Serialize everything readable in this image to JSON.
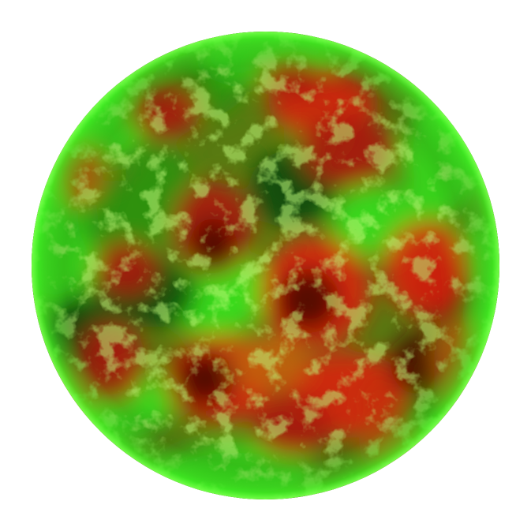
{
  "scene": {
    "subject": "sphere",
    "colors": {
      "background": "#ffffff",
      "glow": "#3cff28",
      "green_bright": "#39e81c",
      "green_mid": "#2e9a12",
      "green_dark": "#0f4a08",
      "red_bright": "#e2260a",
      "red_mid": "#b3190a",
      "red_dark": "#4a0c06",
      "orange": "#c9650c"
    }
  }
}
